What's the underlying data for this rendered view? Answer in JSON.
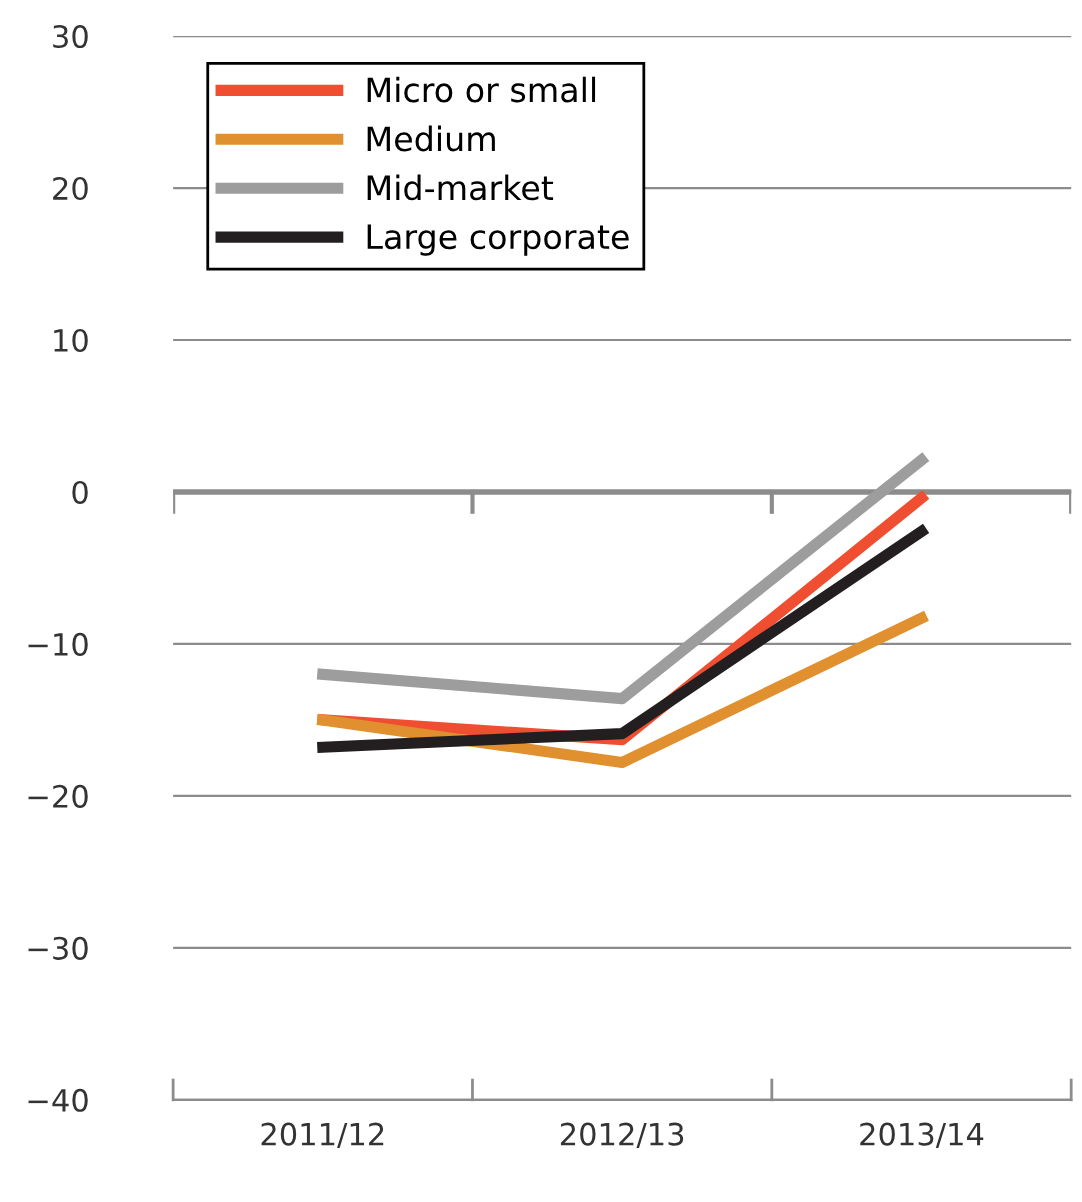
{
  "chart_data": {
    "type": "line",
    "categories": [
      "2011/12",
      "2012/13",
      "2013/14"
    ],
    "series": [
      {
        "name": "Micro or small",
        "color": "#f04e30",
        "values": [
          -15,
          -16.3,
          -0.4
        ]
      },
      {
        "name": "Medium",
        "color": "#e0902f",
        "values": [
          -15,
          -17.8,
          -8.3
        ]
      },
      {
        "name": "Mid-market",
        "color": "#9d9d9d",
        "values": [
          -12,
          -13.6,
          2.1
        ]
      },
      {
        "name": "Large corporate",
        "color": "#231f20",
        "values": [
          -16.8,
          -15.9,
          -2.6
        ]
      }
    ],
    "ylim": [
      -40,
      30
    ],
    "yticks": [
      30,
      20,
      10,
      0,
      -10,
      -20,
      -30,
      -40
    ],
    "grid": "y",
    "legend": "top left",
    "marker": "none",
    "line_style": "solid",
    "ref_lines": [
      {
        "axis": "y",
        "value": 0,
        "color": "#8c8c8c"
      }
    ]
  }
}
